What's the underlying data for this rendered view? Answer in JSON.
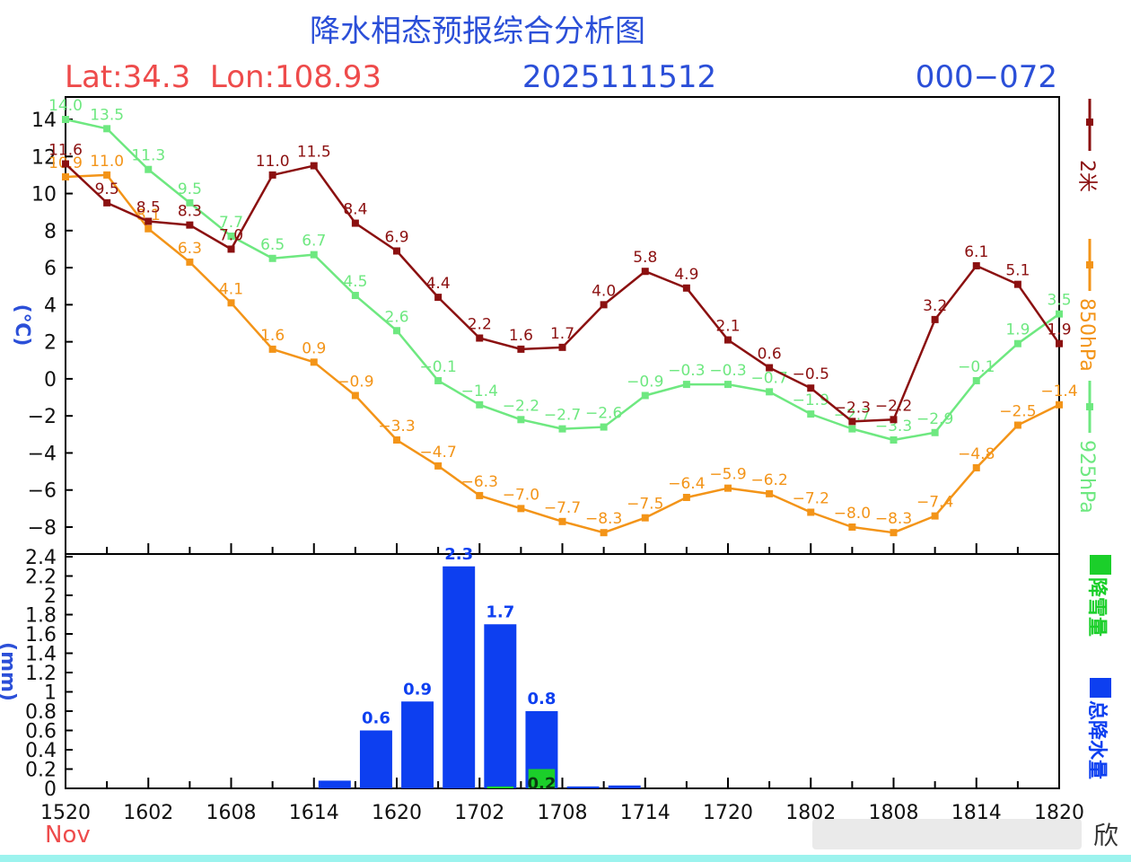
{
  "header": {
    "title": "降水相态预报综合分析图",
    "lat_lon": "Lat:34.3  Lon:108.93",
    "init_time": "2025111512",
    "range": "000−072",
    "month_label": "Nov",
    "watermark": "欣"
  },
  "chart_data": [
    {
      "type": "line",
      "title": "降水相态预报综合分析图",
      "ylabel": "(℃)",
      "ylim": [
        -10,
        14
      ],
      "yticks": [
        "14",
        "12",
        "10",
        "8",
        "6",
        "4",
        "2",
        "0",
        "−2",
        "−4",
        "−6",
        "−8"
      ],
      "x": [
        "1520",
        "1523",
        "1602",
        "1605",
        "1608",
        "1611",
        "1614",
        "1617",
        "1620",
        "1623",
        "1702",
        "1705",
        "1708",
        "1711",
        "1714",
        "1717",
        "1720",
        "1723",
        "1802",
        "1805",
        "1808",
        "1811",
        "1814",
        "1817",
        "1820"
      ],
      "series": [
        {
          "name": "2米",
          "color": "#8b1010",
          "values": [
            11.6,
            9.5,
            8.5,
            8.3,
            7.0,
            11.0,
            11.5,
            8.4,
            6.9,
            4.4,
            2.2,
            1.6,
            1.7,
            4.0,
            5.8,
            4.9,
            2.1,
            0.6,
            -0.5,
            -2.3,
            -2.2,
            3.2,
            6.1,
            5.1,
            1.9
          ],
          "labels": [
            "11.6",
            "9.5",
            "8.5",
            "8.3",
            "7.0",
            "11.0",
            "11.5",
            "8.4",
            "6.9",
            "4.4",
            "2.2",
            "1.6",
            "1.7",
            "4.0",
            "5.8",
            "4.9",
            "2.1",
            "0.6",
            "−0.5",
            "−2.3",
            "−2.2",
            "3.2",
            "6.1",
            "5.1",
            "1.9"
          ]
        },
        {
          "name": "850hPa",
          "color": "#f39418",
          "values": [
            10.9,
            11.0,
            8.1,
            6.3,
            4.1,
            1.6,
            0.9,
            -0.9,
            -3.3,
            -4.7,
            -6.3,
            -7.0,
            -7.7,
            -8.3,
            -7.5,
            -6.4,
            -5.9,
            -6.2,
            -7.2,
            -8.0,
            -8.3,
            -7.4,
            -4.8,
            -2.5,
            -1.4
          ],
          "labels": [
            "10.9",
            "11.0",
            "8.1",
            "6.3",
            "4.1",
            "1.6",
            "0.9",
            "−0.9",
            "−3.3",
            "−4.7",
            "−6.3",
            "−7.0",
            "−7.7",
            "−8.3",
            "−7.5",
            "−6.4",
            "−5.9",
            "−6.2",
            "−7.2",
            "−8.0",
            "−8.3",
            "−7.4",
            "−4.8",
            "−2.5",
            "−1.4"
          ]
        },
        {
          "name": "925hPa",
          "color": "#6ee880",
          "values": [
            14.0,
            13.5,
            11.3,
            9.5,
            7.7,
            6.5,
            6.7,
            4.5,
            2.6,
            -0.1,
            -1.4,
            -2.2,
            -2.7,
            -2.6,
            -0.9,
            -0.3,
            -0.3,
            -0.7,
            -1.9,
            -2.7,
            -3.3,
            -2.9,
            -0.1,
            1.9,
            3.5
          ],
          "labels": [
            "14.0",
            "13.5",
            "11.3",
            "9.5",
            "7.7",
            "6.5",
            "6.7",
            "4.5",
            "2.6",
            "−0.1",
            "−1.4",
            "−2.2",
            "−2.7",
            "−2.6",
            "−0.9",
            "−0.3",
            "−0.3",
            "−0.7",
            "−1.9",
            "−2.7",
            "−3.3",
            "−2.9",
            "−0.1",
            "1.9",
            "3.5"
          ]
        }
      ]
    },
    {
      "type": "bar",
      "ylabel": "(mm)",
      "ylim": [
        0,
        2.4
      ],
      "yticks": [
        "2.4",
        "2.2",
        "2",
        "1.8",
        "1.6",
        "1.4",
        "1.2",
        "1",
        "0.8",
        "0.6",
        "0.4",
        "0.2",
        "0"
      ],
      "xticks": [
        "1520",
        "1602",
        "1608",
        "1614",
        "1620",
        "1702",
        "1708",
        "1714",
        "1720",
        "1802",
        "1808",
        "1814",
        "1820"
      ],
      "series": [
        {
          "name": "总降水量",
          "color": "#0d3ff0",
          "values": [
            0,
            0,
            0,
            0,
            0,
            0,
            0.08,
            0.6,
            0.9,
            2.3,
            1.7,
            0.8,
            0.02,
            0.03,
            0,
            0,
            0,
            0,
            0,
            0,
            0,
            0,
            0,
            0
          ],
          "labels": [
            "",
            "",
            "",
            "",
            "",
            "",
            "",
            "0.6",
            "0.9",
            "2.3",
            "1.7",
            "0.8",
            "",
            "",
            "",
            "",
            "",
            "",
            "",
            "",
            "",
            "",
            "",
            ""
          ]
        },
        {
          "name": "降雪量",
          "color": "#1bcf2a",
          "values": [
            0,
            0,
            0,
            0,
            0,
            0,
            0,
            0,
            0,
            0,
            0.02,
            0.2,
            0,
            0,
            0,
            0,
            0,
            0,
            0,
            0,
            0,
            0,
            0,
            0
          ],
          "labels": [
            "",
            "",
            "",
            "",
            "",
            "",
            "",
            "",
            "",
            "",
            "",
            "0.2",
            "",
            "",
            "",
            "",
            "",
            "",
            "",
            "",
            "",
            "",
            "",
            ""
          ]
        }
      ]
    }
  ]
}
